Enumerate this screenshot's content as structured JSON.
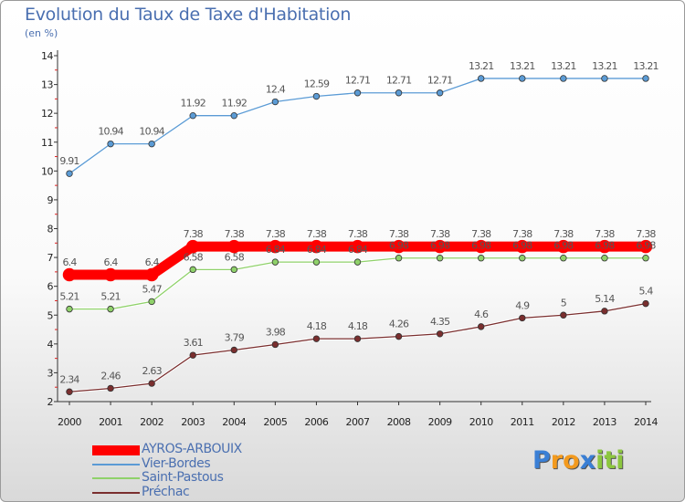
{
  "header": {
    "title": "Evolution du Taux de Taxe d'Habitation",
    "subtitle": "(en %)"
  },
  "logo": {
    "letters": [
      "P",
      "r",
      "o",
      "x",
      "i",
      "t",
      "i"
    ],
    "colors": [
      "#3a7fd5",
      "#f39a1e",
      "#f39a1e",
      "#3a7fd5",
      "#8cc63f",
      "#8cc63f",
      "#8cc63f"
    ]
  },
  "chart_data": {
    "type": "line",
    "title": "Evolution du Taux de Taxe d'Habitation",
    "subtitle": "(en %)",
    "xlabel": "",
    "ylabel": "",
    "x": [
      "2000",
      "2001",
      "2002",
      "2003",
      "2004",
      "2005",
      "2006",
      "2007",
      "2008",
      "2009",
      "2010",
      "2011",
      "2012",
      "2013",
      "2014"
    ],
    "yticks": [
      2,
      3,
      4,
      5,
      6,
      7,
      8,
      9,
      10,
      11,
      12,
      13,
      14
    ],
    "ylim": [
      2,
      14
    ],
    "grid": false,
    "legend_position": "bottom-left",
    "series": [
      {
        "name": "AYROS-ARBOUIX",
        "color": "#ff0000",
        "values": [
          6.4,
          6.4,
          6.4,
          7.38,
          7.38,
          7.38,
          7.38,
          7.38,
          7.38,
          7.38,
          7.38,
          7.38,
          7.38,
          7.38,
          7.38
        ],
        "labels": [
          "6.4",
          "6.4",
          "6.4",
          "7.38",
          "7.38",
          "7.38",
          "7.38",
          "7.38",
          "7.38",
          "7.38",
          "7.38",
          "7.38",
          "7.38",
          "7.38",
          "7.38"
        ]
      },
      {
        "name": "Vier-Bordes",
        "color": "#5b9bd5",
        "values": [
          9.91,
          10.94,
          10.94,
          11.92,
          11.92,
          12.4,
          12.59,
          12.71,
          12.71,
          12.71,
          13.21,
          13.21,
          13.21,
          13.21,
          13.21
        ],
        "labels": [
          "9.91",
          "10.94",
          "10.94",
          "11.92",
          "11.92",
          "12.4",
          "12.59",
          "12.71",
          "12.71",
          "12.71",
          "13.21",
          "13.21",
          "13.21",
          "13.21",
          "13.21"
        ]
      },
      {
        "name": "Saint-Pastous",
        "color": "#8fd16a",
        "values": [
          5.21,
          5.21,
          5.47,
          6.58,
          6.58,
          6.84,
          6.84,
          6.84,
          6.98,
          6.98,
          6.98,
          6.98,
          6.98,
          6.98,
          6.98
        ],
        "labels": [
          "5.21",
          "5.21",
          "5.47",
          "6.58",
          "6.58",
          "6.84",
          "6.84",
          "6.84",
          "6.98",
          "6.98",
          "6.98",
          "6.98",
          "6.98",
          "6.98",
          "6.98"
        ]
      },
      {
        "name": "Préchac",
        "color": "#7a2e2e",
        "values": [
          2.34,
          2.46,
          2.63,
          3.61,
          3.79,
          3.98,
          4.18,
          4.18,
          4.26,
          4.35,
          4.6,
          4.9,
          5.0,
          5.14,
          5.4
        ],
        "labels": [
          "2.34",
          "2.46",
          "2.63",
          "3.61",
          "3.79",
          "3.98",
          "4.18",
          "4.18",
          "4.26",
          "4.35",
          "4.6",
          "4.9",
          "5",
          "5.14",
          "5.4"
        ]
      }
    ]
  }
}
